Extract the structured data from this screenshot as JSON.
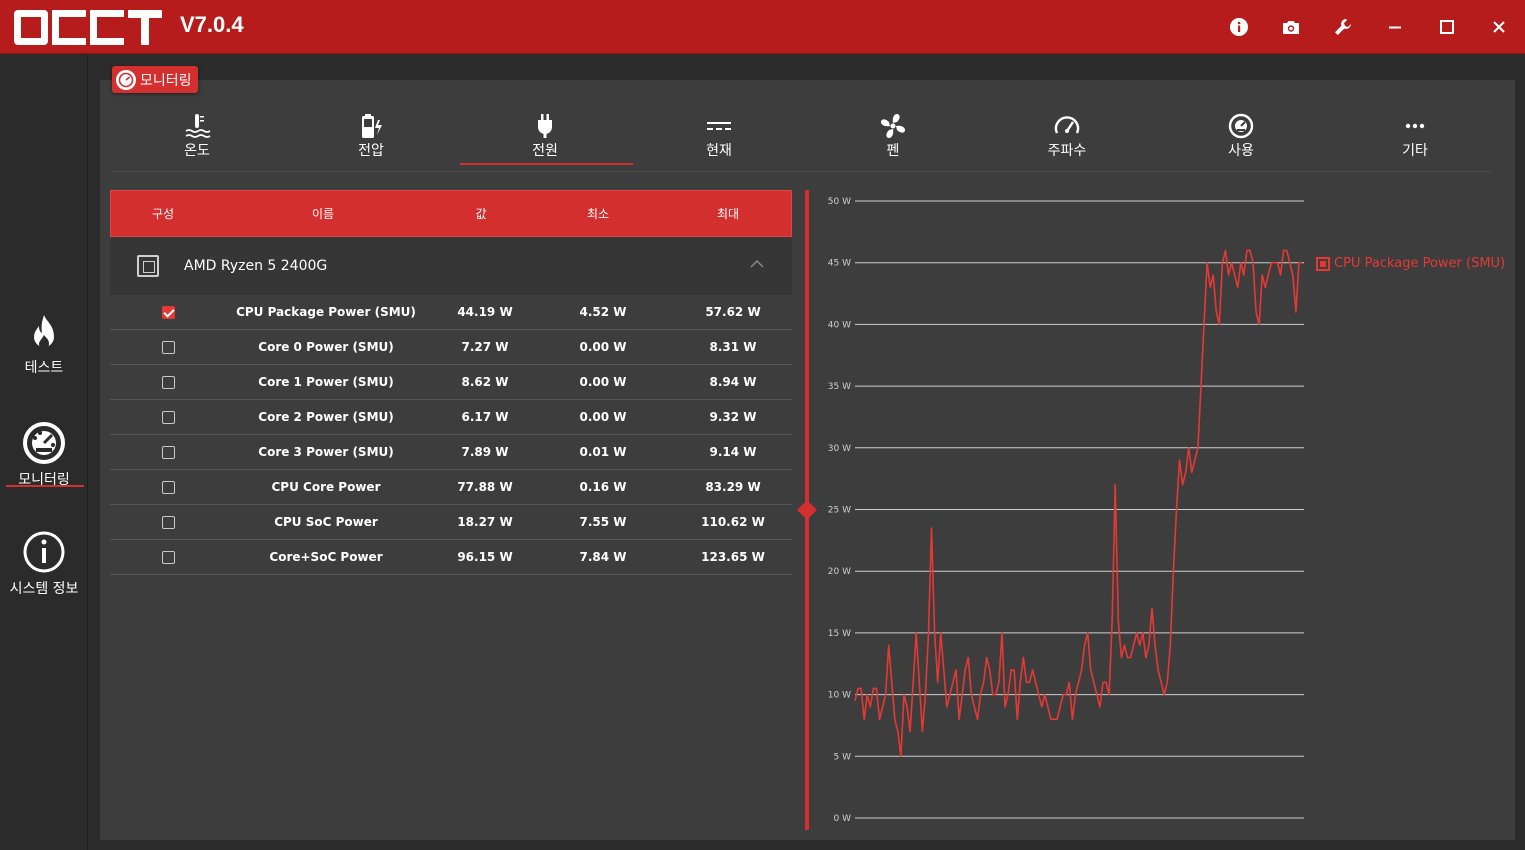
{
  "app": {
    "version": "V7.0.4"
  },
  "sidebar": {
    "items": [
      {
        "label": "테스트",
        "icon": "flame-icon"
      },
      {
        "label": "모니터링",
        "icon": "gauge-icon",
        "active": true
      },
      {
        "label": "시스템 정보",
        "icon": "info-icon"
      }
    ]
  },
  "panel": {
    "tag_label": "모니터링"
  },
  "tabs": [
    {
      "label": "온도",
      "icon": "thermometer-icon"
    },
    {
      "label": "전압",
      "icon": "battery-voltage-icon"
    },
    {
      "label": "전원",
      "icon": "power-plug-icon",
      "active": true
    },
    {
      "label": "현재",
      "icon": "current-icon"
    },
    {
      "label": "펜",
      "icon": "fan-icon"
    },
    {
      "label": "주파수",
      "icon": "speedometer-icon"
    },
    {
      "label": "사용",
      "icon": "usage-gauge-icon"
    },
    {
      "label": "기타",
      "icon": "more-icon"
    }
  ],
  "table": {
    "headers": {
      "config": "구성",
      "name": "이름",
      "value": "값",
      "min": "최소",
      "max": "최대"
    },
    "group": "AMD Ryzen 5 2400G",
    "rows": [
      {
        "checked": true,
        "name": "CPU Package Power (SMU)",
        "value": "44.19 W",
        "min": "4.52 W",
        "max": "57.62 W"
      },
      {
        "checked": false,
        "name": "Core 0 Power (SMU)",
        "value": "7.27 W",
        "min": "0.00 W",
        "max": "8.31 W"
      },
      {
        "checked": false,
        "name": "Core 1 Power (SMU)",
        "value": "8.62 W",
        "min": "0.00 W",
        "max": "8.94 W"
      },
      {
        "checked": false,
        "name": "Core 2 Power (SMU)",
        "value": "6.17 W",
        "min": "0.00 W",
        "max": "9.32 W"
      },
      {
        "checked": false,
        "name": "Core 3 Power (SMU)",
        "value": "7.89 W",
        "min": "0.01 W",
        "max": "9.14 W"
      },
      {
        "checked": false,
        "name": "CPU Core Power",
        "value": "77.88 W",
        "min": "0.16 W",
        "max": "83.29 W"
      },
      {
        "checked": false,
        "name": "CPU SoC Power",
        "value": "18.27 W",
        "min": "7.55 W",
        "max": "110.62 W"
      },
      {
        "checked": false,
        "name": "Core+SoC Power",
        "value": "96.15 W",
        "min": "7.84 W",
        "max": "123.65 W"
      }
    ]
  },
  "chart_data": {
    "type": "line",
    "series": [
      {
        "name": "CPU Package Power (SMU)",
        "color": "#e53935",
        "values": [
          9.5,
          10.5,
          10.5,
          8,
          10,
          9,
          10.5,
          10.5,
          8,
          9,
          10,
          14,
          11,
          8,
          7,
          5,
          10,
          9,
          7,
          11,
          15,
          11,
          7,
          10,
          15,
          23.5,
          15,
          11,
          15,
          12,
          9,
          10,
          11,
          12,
          8,
          10,
          12,
          13,
          10,
          9,
          8,
          10,
          11,
          13,
          12,
          10,
          10,
          11,
          15,
          9,
          10,
          12,
          12,
          8,
          11,
          13,
          11,
          11,
          12,
          11,
          10,
          9,
          10,
          9,
          8,
          8,
          8,
          9,
          10,
          10,
          11,
          8,
          10,
          11,
          12,
          14,
          15,
          12,
          11,
          10,
          9,
          11,
          11,
          10,
          16,
          27,
          16,
          13,
          14,
          13,
          13,
          14,
          15,
          14,
          15,
          13,
          14,
          17,
          14,
          12,
          11,
          10,
          11,
          14,
          20,
          25,
          29,
          27,
          28,
          30,
          28,
          29,
          30,
          35,
          40,
          45,
          43,
          44,
          41,
          40,
          45,
          46,
          44,
          45,
          44,
          43,
          45,
          44,
          46,
          46,
          45,
          41,
          40,
          44,
          43,
          44,
          45,
          45,
          45,
          44,
          46,
          46,
          45,
          44,
          41,
          45,
          45
        ]
      }
    ],
    "y_ticks": [
      "50 W",
      "45 W",
      "40 W",
      "35 W",
      "30 W",
      "25 W",
      "20 W",
      "15 W",
      "10 W",
      "5 W",
      "0 W"
    ],
    "ylim": [
      0,
      50
    ],
    "grid": true,
    "legend": "right"
  }
}
